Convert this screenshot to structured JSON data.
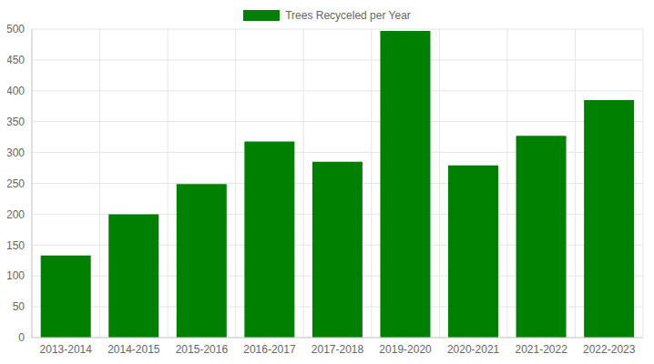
{
  "chart_data": {
    "type": "bar",
    "legend": "top",
    "series": [
      {
        "name": "Trees Recyceled per Year",
        "color": "#008000",
        "values": [
          133,
          200,
          249,
          318,
          285,
          497,
          279,
          327,
          385
        ]
      }
    ],
    "categories": [
      "2013-2014",
      "2014-2015",
      "2015-2016",
      "2016-2017",
      "2017-2018",
      "2019-2020",
      "2020-2021",
      "2021-2022",
      "2022-2023"
    ],
    "ylim": [
      0,
      500
    ],
    "yticks": [
      0,
      50,
      100,
      150,
      200,
      250,
      300,
      350,
      400,
      450,
      500
    ],
    "grid": true
  }
}
